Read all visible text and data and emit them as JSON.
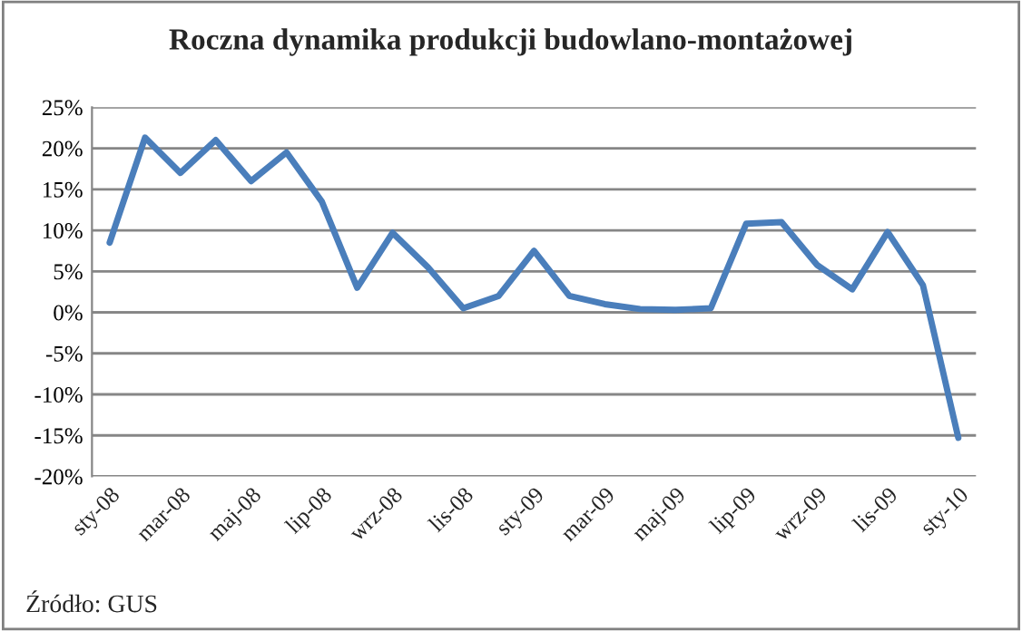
{
  "chart_data": {
    "type": "line",
    "title": "Roczna dynamika produkcji budowlano-montażowej",
    "categories": [
      "sty-08",
      null,
      "mar-08",
      null,
      "maj-08",
      null,
      "lip-08",
      null,
      "wrz-08",
      null,
      "lis-08",
      null,
      "sty-09",
      null,
      "mar-09",
      null,
      "maj-09",
      null,
      "lip-09",
      null,
      "wrz-09",
      null,
      "lis-09",
      null,
      "sty-10"
    ],
    "series": [
      {
        "color": "#4a7ebb",
        "values": [
          8.5,
          21.3,
          17,
          21,
          16,
          19.5,
          13.5,
          3,
          9.7,
          5.5,
          0.5,
          2,
          7.5,
          2,
          1,
          0.4,
          0.3,
          0.5,
          10.8,
          11,
          5.8,
          2.8,
          9.8,
          3.3,
          -15.3
        ]
      }
    ],
    "ylim": [
      -20,
      25
    ],
    "yticks": [
      {
        "value": -20,
        "label": "-20%"
      },
      {
        "value": -15,
        "label": "-15%"
      },
      {
        "value": -10,
        "label": "-10%"
      },
      {
        "value": -5,
        "label": "-5%"
      },
      {
        "value": 0,
        "label": "0%"
      },
      {
        "value": 5,
        "label": "5%"
      },
      {
        "value": 10,
        "label": "10%"
      },
      {
        "value": 15,
        "label": "15%"
      },
      {
        "value": 20,
        "label": "20%"
      },
      {
        "value": 25,
        "label": "25%"
      }
    ],
    "grid": "y",
    "marker": "none",
    "line_style": "solid",
    "annotations": [
      "Źródło: GUS"
    ]
  }
}
